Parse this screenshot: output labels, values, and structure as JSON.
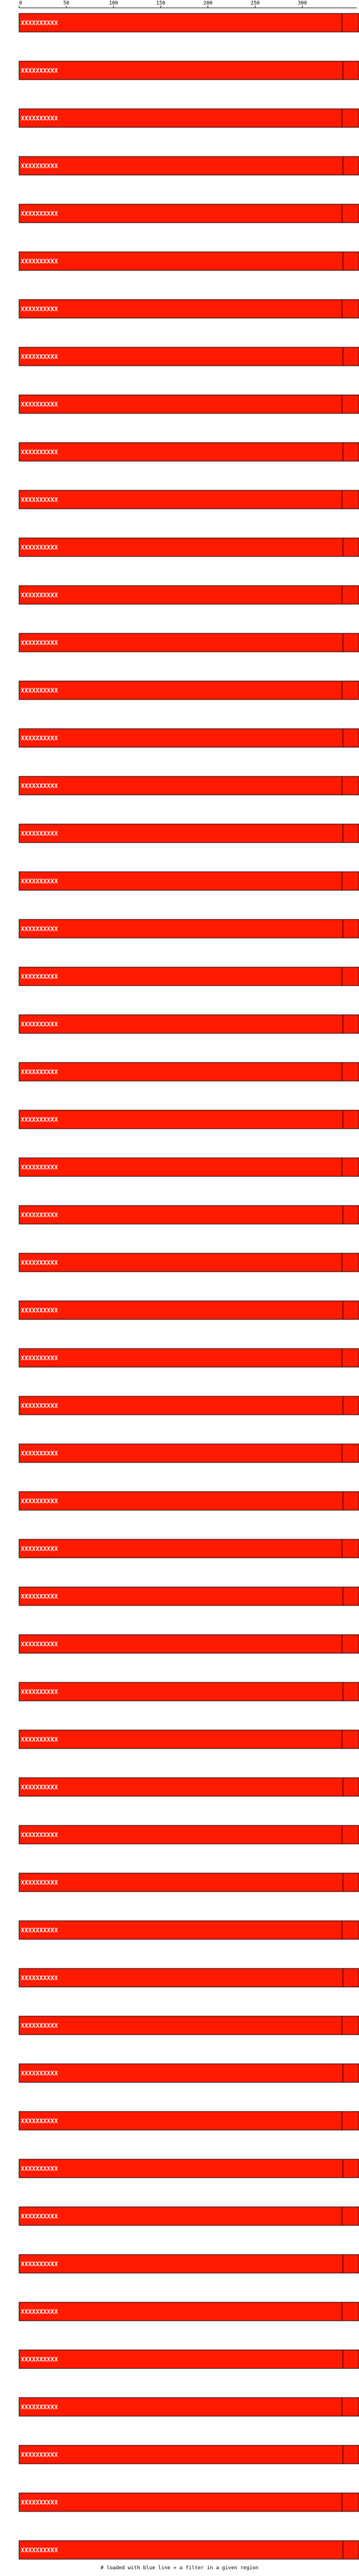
{
  "chart_data": {
    "type": "bar",
    "orientation": "horizontal",
    "x_ticks": [
      0,
      50,
      100,
      150,
      200,
      250,
      300
    ],
    "xlim": [
      0,
      360
    ],
    "bar_color": "#ff1a00",
    "footer": "# loaded with blue line = a filter in a given region",
    "rows": [
      {
        "label": "XXXXXXXXXX",
        "value": 360,
        "marker": 342
      },
      {
        "label": "XXXXXXXXXX",
        "value": 360,
        "marker": 343
      },
      {
        "label": "XXXXXXXXXX",
        "value": 360,
        "marker": 342
      },
      {
        "label": "XXXXXXXXXX",
        "value": 360,
        "marker": 343
      },
      {
        "label": "XXXXXXXXXX",
        "value": 360,
        "marker": 342
      },
      {
        "label": "XXXXXXXXXX",
        "value": 360,
        "marker": 343
      },
      {
        "label": "XXXXXXXXXX",
        "value": 360,
        "marker": 342
      },
      {
        "label": "XXXXXXXXXX",
        "value": 360,
        "marker": 343
      },
      {
        "label": "XXXXXXXXXX",
        "value": 360,
        "marker": 342
      },
      {
        "label": "XXXXXXXXXX",
        "value": 360,
        "marker": 343
      },
      {
        "label": "XXXXXXXXXX",
        "value": 360,
        "marker": 342
      },
      {
        "label": "XXXXXXXXXX",
        "value": 360,
        "marker": 343
      },
      {
        "label": "XXXXXXXXXX",
        "value": 360,
        "marker": 342
      },
      {
        "label": "XXXXXXXXXX",
        "value": 360,
        "marker": 343
      },
      {
        "label": "XXXXXXXXXX",
        "value": 360,
        "marker": 342
      },
      {
        "label": "XXXXXXXXXX",
        "value": 360,
        "marker": 343
      },
      {
        "label": "XXXXXXXXXX",
        "value": 360,
        "marker": 342
      },
      {
        "label": "XXXXXXXXXX",
        "value": 360,
        "marker": 343
      },
      {
        "label": "XXXXXXXXXX",
        "value": 360,
        "marker": 342
      },
      {
        "label": "XXXXXXXXXX",
        "value": 360,
        "marker": 343
      },
      {
        "label": "XXXXXXXXXX",
        "value": 360,
        "marker": 342
      },
      {
        "label": "XXXXXXXXXX",
        "value": 360,
        "marker": 343
      },
      {
        "label": "XXXXXXXXXX",
        "value": 360,
        "marker": 342
      },
      {
        "label": "XXXXXXXXXX",
        "value": 360,
        "marker": 343
      },
      {
        "label": "XXXXXXXXXX",
        "value": 360,
        "marker": 342
      },
      {
        "label": "XXXXXXXXXX",
        "value": 360,
        "marker": 343
      },
      {
        "label": "XXXXXXXXXX",
        "value": 360,
        "marker": 342
      },
      {
        "label": "XXXXXXXXXX",
        "value": 360,
        "marker": 343
      },
      {
        "label": "XXXXXXXXXX",
        "value": 360,
        "marker": 342
      },
      {
        "label": "XXXXXXXXXX",
        "value": 360,
        "marker": 343
      },
      {
        "label": "XXXXXXXXXX",
        "value": 360,
        "marker": 342
      },
      {
        "label": "XXXXXXXXXX",
        "value": 360,
        "marker": 343
      },
      {
        "label": "XXXXXXXXXX",
        "value": 360,
        "marker": 342
      },
      {
        "label": "XXXXXXXXXX",
        "value": 360,
        "marker": 343
      },
      {
        "label": "XXXXXXXXXX",
        "value": 360,
        "marker": 342
      },
      {
        "label": "XXXXXXXXXX",
        "value": 360,
        "marker": 343
      },
      {
        "label": "XXXXXXXXXX",
        "value": 360,
        "marker": 342
      },
      {
        "label": "XXXXXXXXXX",
        "value": 360,
        "marker": 343
      },
      {
        "label": "XXXXXXXXXX",
        "value": 360,
        "marker": 342
      },
      {
        "label": "XXXXXXXXXX",
        "value": 360,
        "marker": 343
      },
      {
        "label": "XXXXXXXXXX",
        "value": 360,
        "marker": 342
      },
      {
        "label": "XXXXXXXXXX",
        "value": 360,
        "marker": 343
      },
      {
        "label": "XXXXXXXXXX",
        "value": 360,
        "marker": 342
      },
      {
        "label": "XXXXXXXXXX",
        "value": 360,
        "marker": 343
      },
      {
        "label": "XXXXXXXXXX",
        "value": 360,
        "marker": 342
      },
      {
        "label": "XXXXXXXXXX",
        "value": 360,
        "marker": 343
      },
      {
        "label": "XXXXXXXXXX",
        "value": 360,
        "marker": 342
      },
      {
        "label": "XXXXXXXXXX",
        "value": 360,
        "marker": 343
      },
      {
        "label": "XXXXXXXXXX",
        "value": 360,
        "marker": 342
      },
      {
        "label": "XXXXXXXXXX",
        "value": 360,
        "marker": 343
      },
      {
        "label": "XXXXXXXXXX",
        "value": 360,
        "marker": 342
      },
      {
        "label": "XXXXXXXXXX",
        "value": 360,
        "marker": 343
      },
      {
        "label": "XXXXXXXXXX",
        "value": 360,
        "marker": 342
      },
      {
        "label": "XXXXXXXXXX",
        "value": 360,
        "marker": 343
      },
      {
        "label": "XXXXXXXXXX",
        "value": 360,
        "marker": 342
      },
      {
        "label": "XXXXXXXXXX",
        "value": 360,
        "marker": 343
      }
    ]
  }
}
